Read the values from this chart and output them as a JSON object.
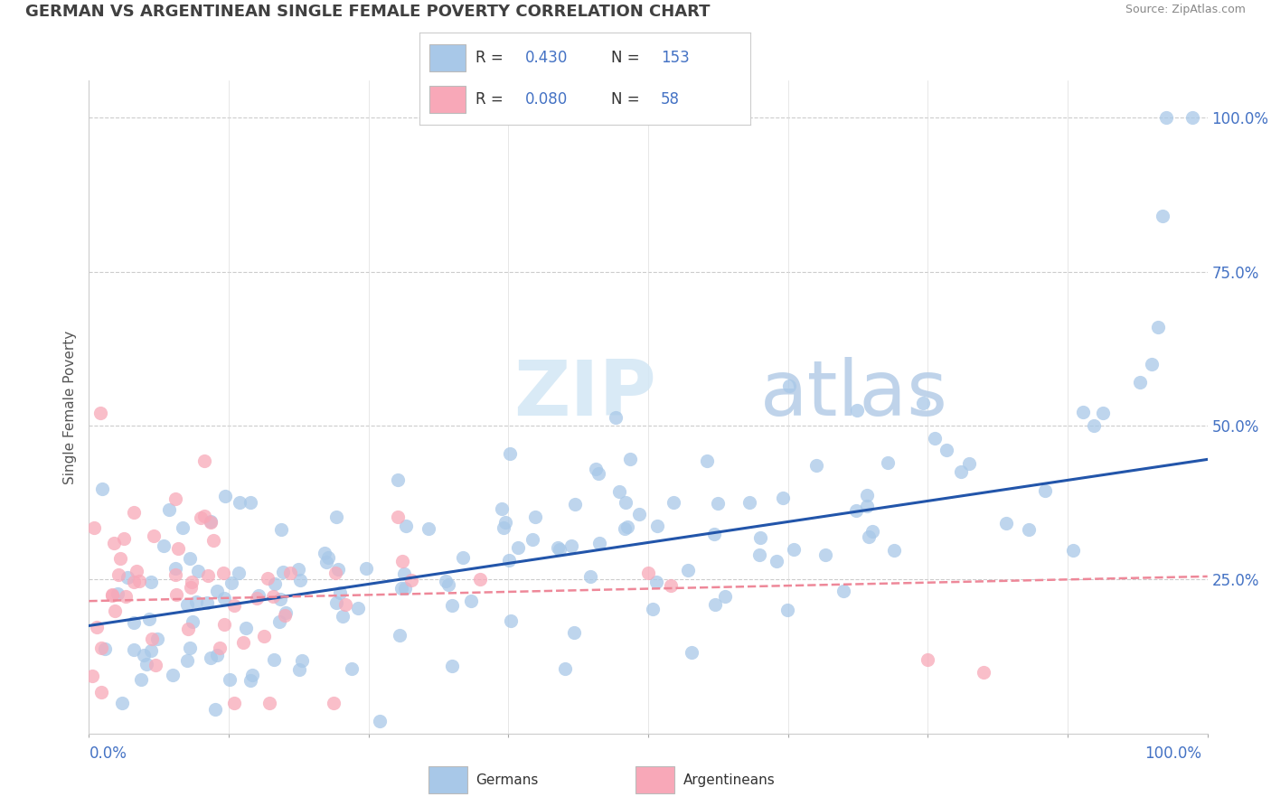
{
  "title": "GERMAN VS ARGENTINEAN SINGLE FEMALE POVERTY CORRELATION CHART",
  "source": "Source: ZipAtlas.com",
  "ylabel": "Single Female Poverty",
  "watermark_zip": "ZIP",
  "watermark_atlas": "atlas",
  "german_R": 0.43,
  "german_N": 153,
  "argentinean_R": 0.08,
  "argentinean_N": 58,
  "german_color": "#a8c8e8",
  "argentinean_color": "#f8a8b8",
  "german_line_color": "#2255aa",
  "argentinean_line_color": "#ee8899",
  "legend_text_color": "#4472c4",
  "bg_color": "#ffffff",
  "grid_color": "#cccccc",
  "title_color": "#404040",
  "marker_edge_alpha": 0.7,
  "scatter_size": 120
}
